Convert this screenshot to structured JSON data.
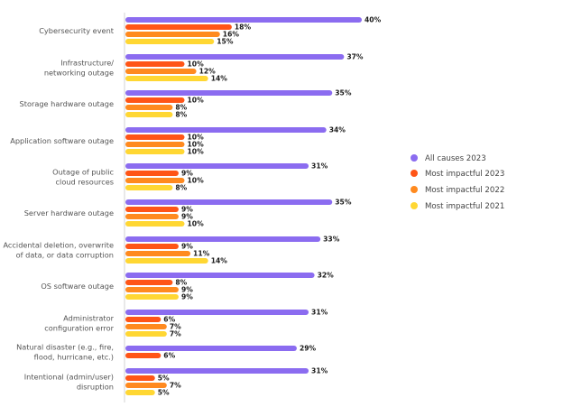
{
  "chart_data": {
    "type": "bar",
    "orientation": "horizontal",
    "title": "",
    "xlabel": "",
    "ylabel": "",
    "xlim": [
      0,
      40
    ],
    "grid": false,
    "legend_position": "right",
    "value_suffix": "%",
    "categories": [
      [
        "Cybersecurity event"
      ],
      [
        "Infrastructure/",
        "networking outage"
      ],
      [
        "Storage hardware outage"
      ],
      [
        "Application software outage"
      ],
      [
        "Outage of public",
        "cloud resources"
      ],
      [
        "Server hardware outage"
      ],
      [
        "Accidental deletion, overwrite",
        "of data, or data corruption"
      ],
      [
        "OS software outage"
      ],
      [
        "Administrator",
        "configuration error"
      ],
      [
        "Natural disaster (e.g., fire,",
        "flood, hurricane, etc.)"
      ],
      [
        "Intentional (admin/user)",
        "disruption"
      ]
    ],
    "series": [
      {
        "name": "All causes 2023",
        "color": "#8B6CF0",
        "values": [
          40,
          37,
          35,
          34,
          31,
          35,
          33,
          32,
          31,
          29,
          31
        ]
      },
      {
        "name": "Most impactful 2023",
        "color": "#FF5517",
        "values": [
          18,
          10,
          10,
          10,
          9,
          9,
          9,
          8,
          6,
          6,
          5
        ]
      },
      {
        "name": "Most impactful 2022",
        "color": "#FF8A1F",
        "values": [
          16,
          12,
          8,
          10,
          10,
          9,
          11,
          9,
          7,
          null,
          7
        ]
      },
      {
        "name": "Most impactful 2021",
        "color": "#FFD733",
        "values": [
          15,
          14,
          8,
          10,
          8,
          10,
          14,
          9,
          7,
          null,
          5
        ]
      }
    ]
  }
}
